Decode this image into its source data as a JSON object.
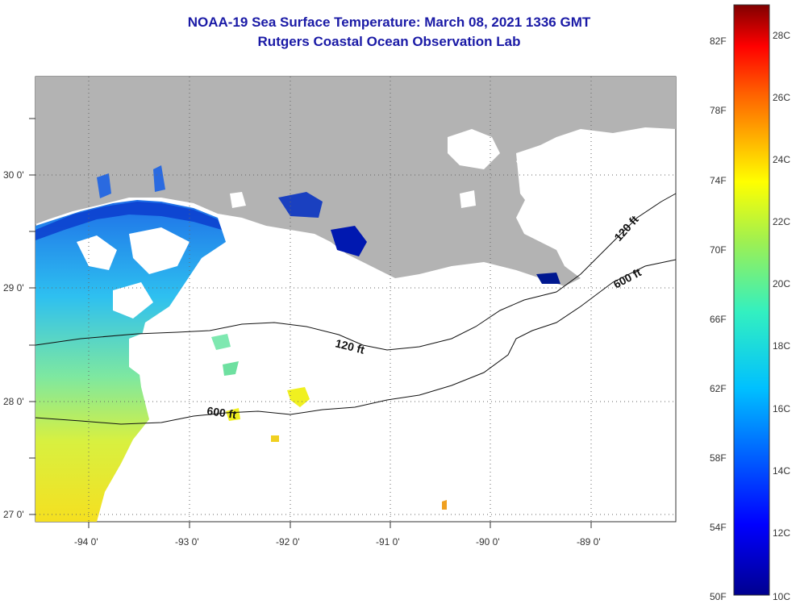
{
  "title": {
    "line1": "NOAA-19 Sea Surface Temperature:  March 08, 2021 1336 GMT",
    "line2": "Rutgers Coastal Ocean Observation Lab"
  },
  "colors": {
    "title": "#1a1aa6",
    "land": "#b3b3b3",
    "cloud": "#ffffff"
  },
  "map": {
    "lon_labels": [
      "-94 0'",
      "-93 0'",
      "-92 0'",
      "-91 0'",
      "-90 0'",
      "-89 0'"
    ],
    "lat_labels": [
      "30 0'",
      "29 0'",
      "28 0'",
      "27 0'"
    ],
    "contours": [
      {
        "label": "120 ft"
      },
      {
        "label": "120 ft"
      },
      {
        "label": "600 ft"
      },
      {
        "label": "600 ft"
      }
    ]
  },
  "colorbar": {
    "f_labels": [
      "82F",
      "78F",
      "74F",
      "70F",
      "66F",
      "62F",
      "58F",
      "54F",
      "50F"
    ],
    "c_labels": [
      "28C",
      "26C",
      "24C",
      "22C",
      "20C",
      "18C",
      "16C",
      "14C",
      "12C",
      "10C"
    ],
    "range_c": [
      10,
      29
    ]
  }
}
